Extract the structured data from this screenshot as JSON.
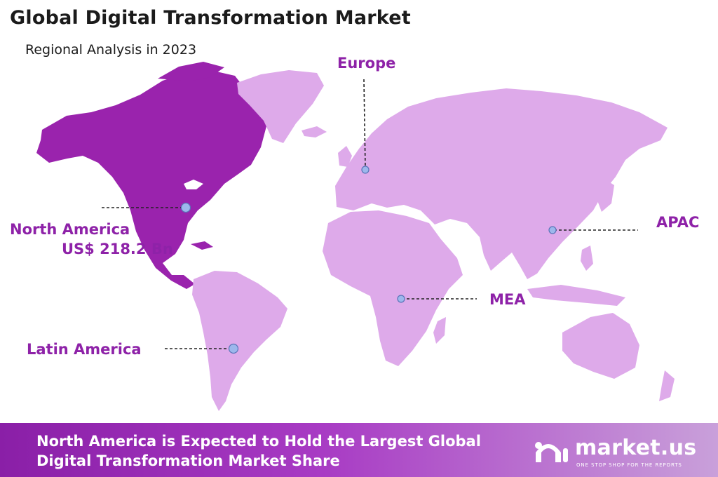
{
  "header": {
    "title": "Global Digital Transformation Market",
    "subtitle": "Regional Analysis in 2023"
  },
  "regions": [
    {
      "name": "North America",
      "value": "US$ 218.2 Bn",
      "highlighted": true
    },
    {
      "name": "Europe"
    },
    {
      "name": "APAC"
    },
    {
      "name": "MEA"
    },
    {
      "name": "Latin America"
    }
  ],
  "footer": {
    "headline_line1": "North America is Expected to Hold the Largest Global",
    "headline_line2": "Digital Transformation Market Share",
    "brand_name": "market.us",
    "brand_tagline": "ONE STOP SHOP FOR THE REPORTS"
  },
  "colors": {
    "highlight_region": "#9a23ad",
    "other_regions": "#deaaea",
    "label_text": "#8e22a8",
    "marker": "#9db7ec",
    "footer_start": "#8a1fa7",
    "footer_end": "#c9a0da"
  }
}
